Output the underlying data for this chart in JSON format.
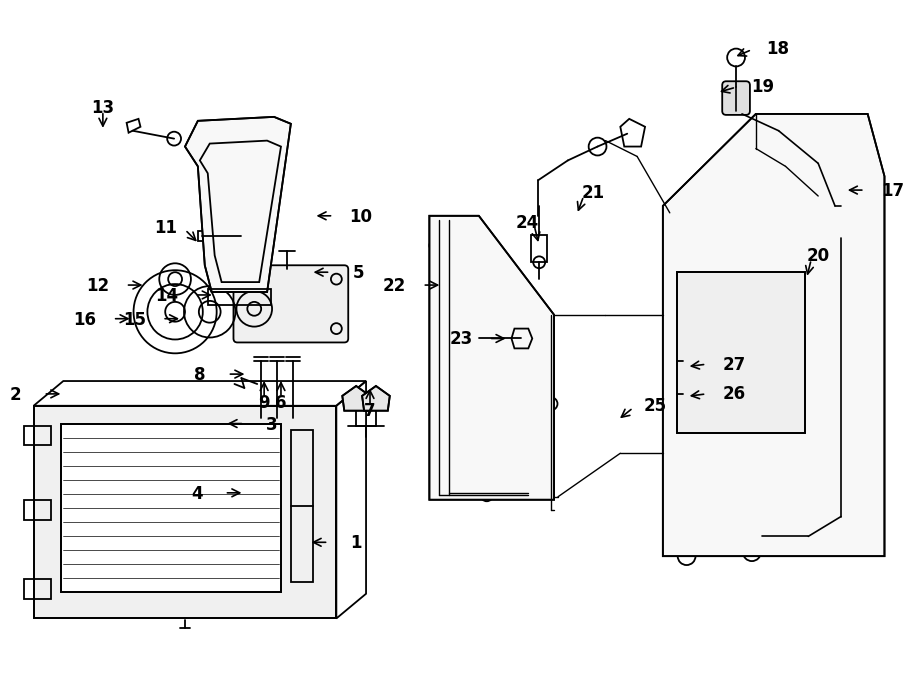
{
  "bg_color": "#ffffff",
  "line_color": "#000000",
  "lw": 1.3,
  "fig_width": 9.0,
  "fig_height": 6.61,
  "dpi": 100,
  "callouts": [
    [
      "1",
      3.1,
      1.22,
      -1.0,
      0.0,
      12
    ],
    [
      "2",
      0.22,
      2.72,
      1.0,
      0.0,
      12
    ],
    [
      "3",
      2.25,
      2.42,
      -1.0,
      0.0,
      12
    ],
    [
      "4",
      2.05,
      1.72,
      1.0,
      0.0,
      12
    ],
    [
      "5",
      3.12,
      3.95,
      -1.0,
      0.0,
      12
    ],
    [
      "6",
      2.62,
      2.68,
      0.0,
      1.0,
      12
    ],
    [
      "7",
      3.52,
      2.6,
      0.0,
      1.0,
      12
    ],
    [
      "8",
      2.08,
      2.92,
      0.8,
      0.0,
      12
    ],
    [
      "9",
      2.45,
      2.68,
      0.0,
      1.0,
      12
    ],
    [
      "10",
      3.15,
      4.52,
      -1.0,
      0.0,
      12
    ],
    [
      "11",
      1.65,
      4.38,
      0.5,
      -0.5,
      12
    ],
    [
      "12",
      1.05,
      3.82,
      1.0,
      0.0,
      12
    ],
    [
      "13",
      0.82,
      5.58,
      0.0,
      -1.0,
      12
    ],
    [
      "14",
      1.75,
      3.72,
      0.6,
      0.0,
      12
    ],
    [
      "15",
      1.42,
      3.48,
      0.6,
      0.0,
      12
    ],
    [
      "16",
      0.92,
      3.48,
      1.0,
      0.0,
      12
    ],
    [
      "17",
      8.52,
      4.78,
      -1.0,
      0.0,
      12
    ],
    [
      "18",
      7.38,
      6.2,
      -0.7,
      -0.3,
      12
    ],
    [
      "19",
      7.22,
      5.82,
      -0.7,
      -0.2,
      12
    ],
    [
      "20",
      7.98,
      4.08,
      -0.2,
      -0.8,
      12
    ],
    [
      "21",
      5.68,
      4.72,
      -0.3,
      -0.8,
      12
    ],
    [
      "22",
      4.05,
      3.82,
      1.0,
      0.0,
      12
    ],
    [
      "23",
      4.72,
      3.28,
      1.0,
      0.0,
      12
    ],
    [
      "24",
      5.18,
      4.42,
      0.2,
      -0.8,
      12
    ],
    [
      "25",
      6.18,
      2.58,
      -0.5,
      -0.4,
      12
    ],
    [
      "26",
      6.92,
      2.72,
      -0.8,
      -0.1,
      12
    ],
    [
      "27",
      6.92,
      3.02,
      -0.8,
      -0.1,
      12
    ]
  ]
}
